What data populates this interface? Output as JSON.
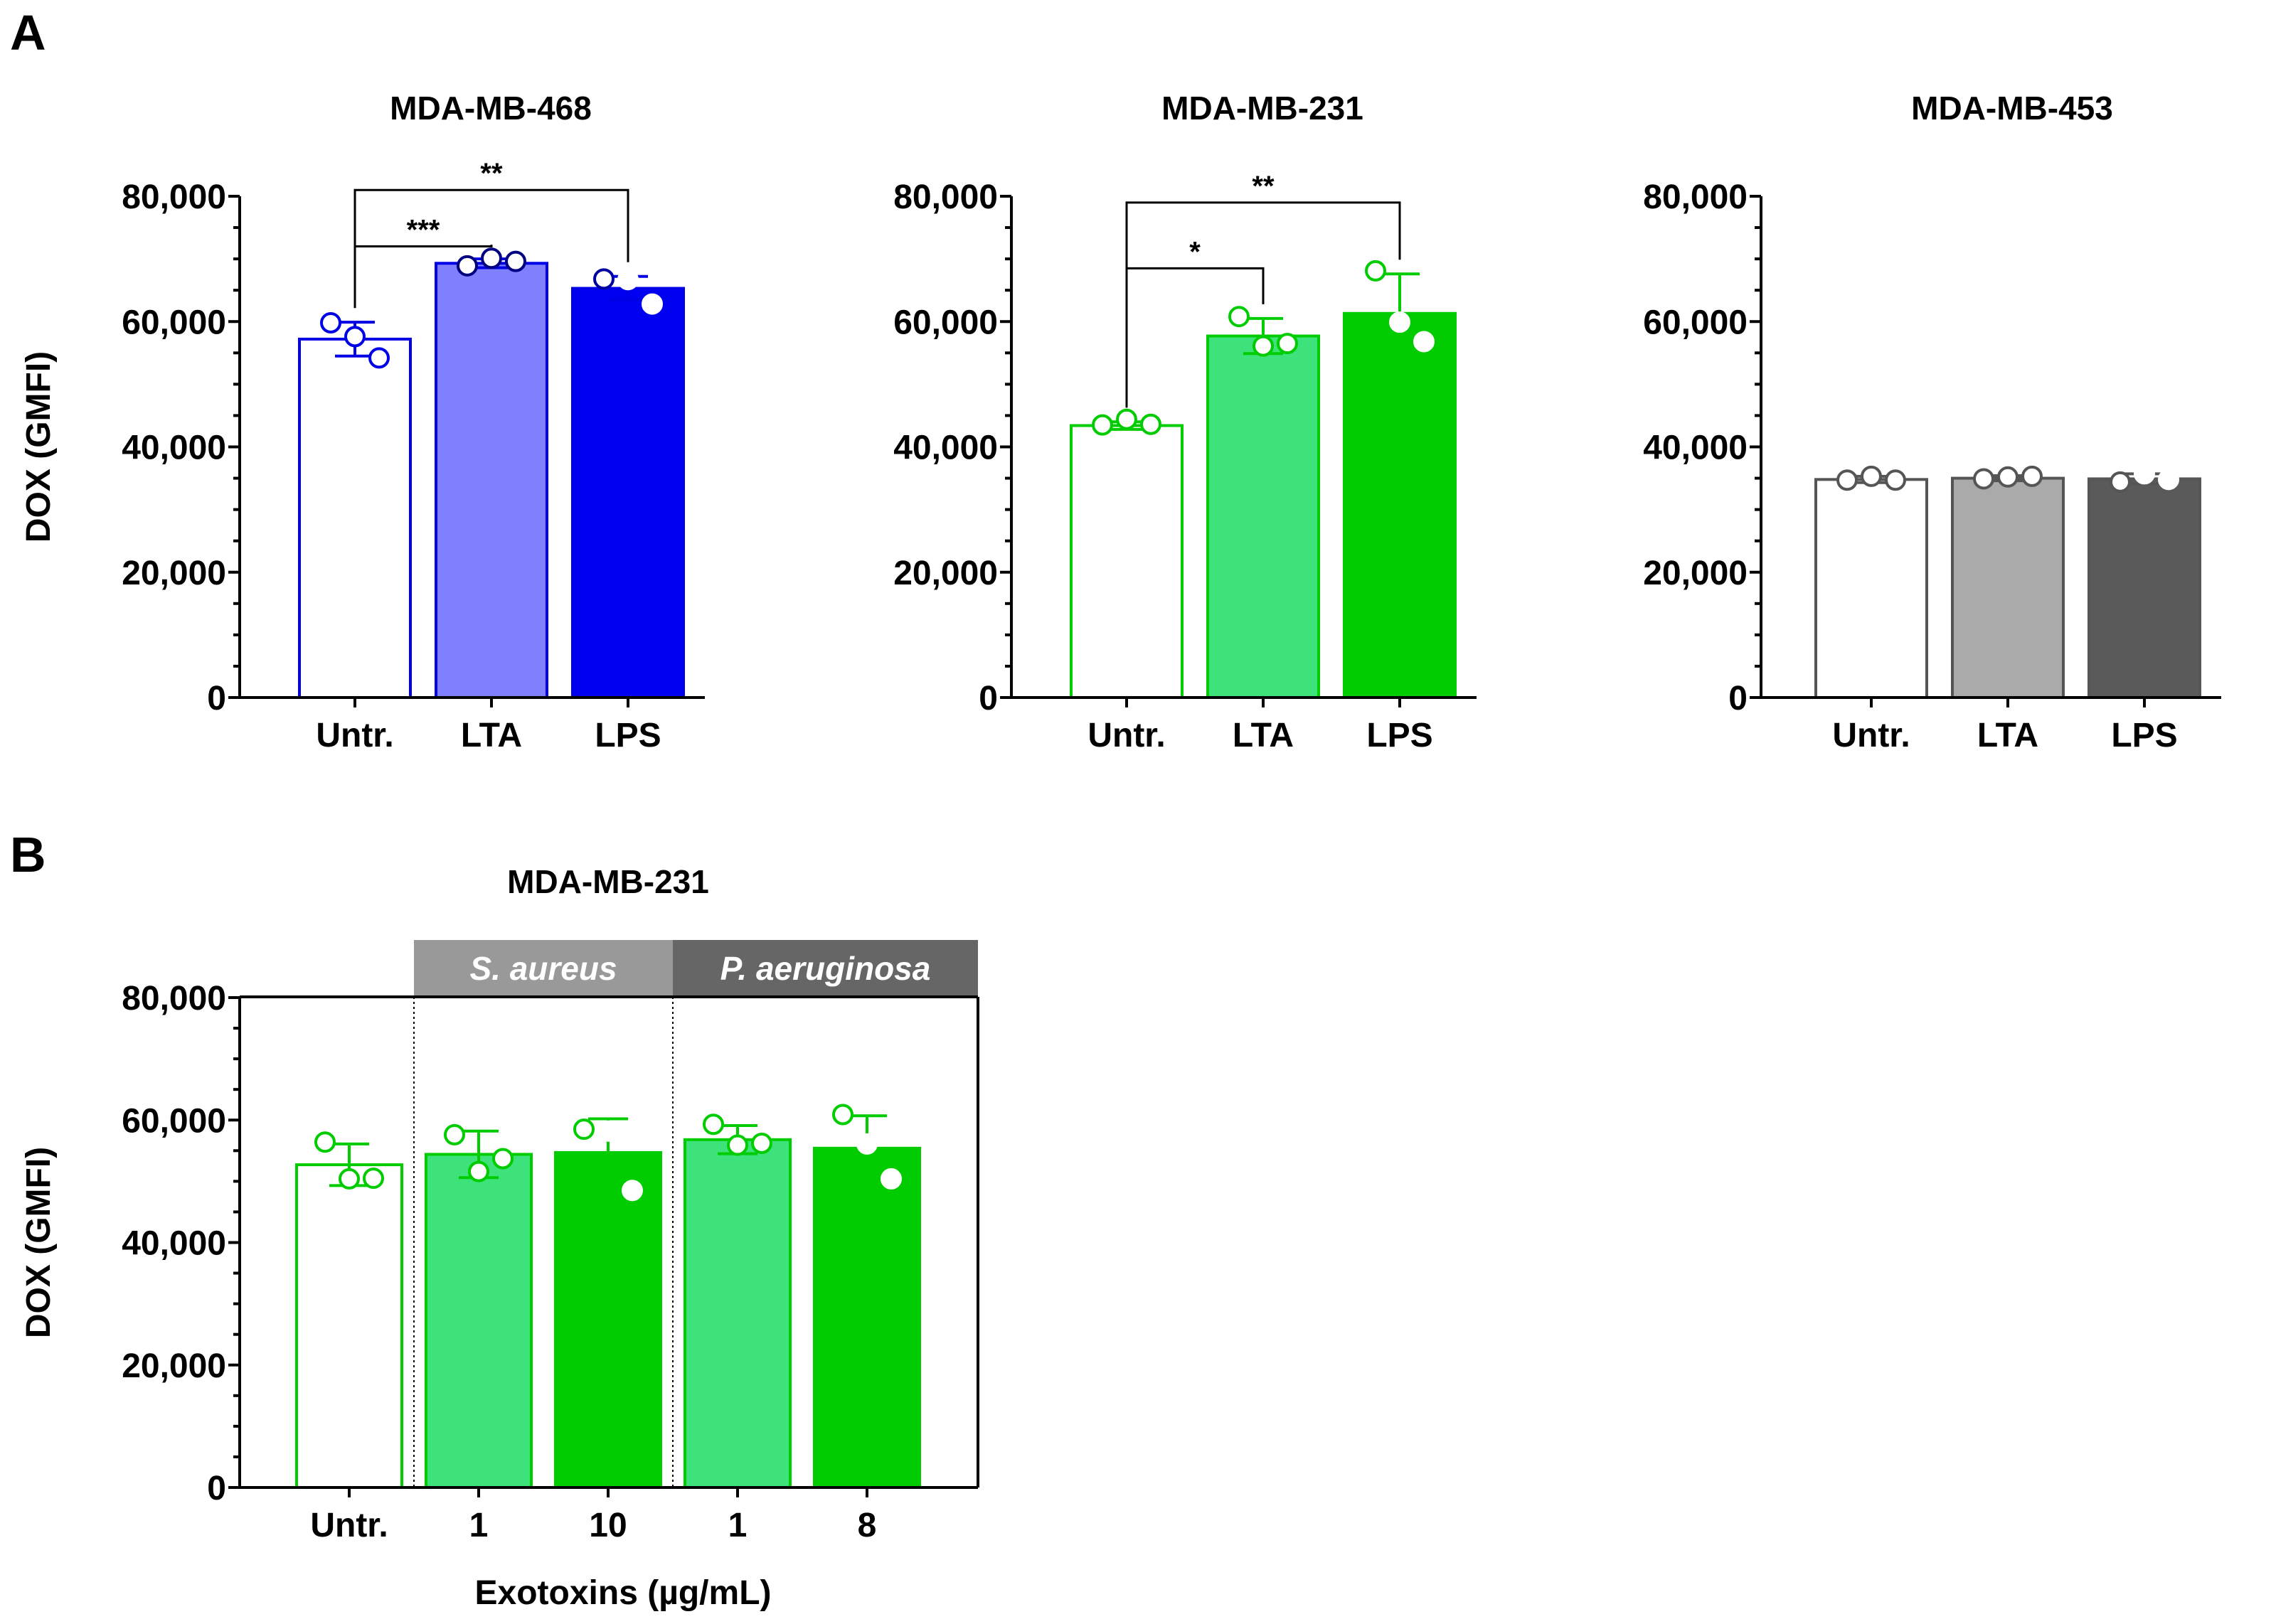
{
  "panels": {
    "A": "A",
    "B": "B"
  },
  "colors": {
    "blue_edge": "#0000e6",
    "blue_lta": "#8080ff",
    "blue_lps": "#0000f0",
    "green_edge": "#00cc00",
    "green_lta": "#3de37a",
    "green_lps": "#00cc00",
    "gray_edge": "#555555",
    "gray_lta": "#aaaaaa",
    "gray_lps": "#5a5a5a",
    "hdr_saureus": "#999999",
    "hdr_paeruginosa": "#666666"
  },
  "chart_data": [
    {
      "type": "bar",
      "title": "MDA-MB-468",
      "ylabel": "DOX (GMFI)",
      "xlabel": "",
      "categories": [
        "Untr.",
        "LTA",
        "LPS"
      ],
      "values": [
        57200,
        69300,
        65300
      ],
      "errors": [
        2700,
        700,
        1900
      ],
      "points": [
        [
          59800,
          57600,
          54200
        ],
        [
          68900,
          70100,
          69600
        ],
        [
          66800,
          66700,
          62800
        ]
      ],
      "ylim": [
        0,
        80000
      ],
      "yticks": [
        0,
        20000,
        40000,
        60000,
        80000
      ],
      "ytick_labels": [
        "0",
        "20,000",
        "40,000",
        "60,000",
        "80,000"
      ],
      "significance": [
        {
          "from": 0,
          "to": 2,
          "label": "**",
          "level": 81000
        },
        {
          "from": 0,
          "to": 1,
          "label": "***",
          "level": 72000
        }
      ],
      "bar_fill": [
        "#ffffff",
        "#8080ff",
        "#0000f0"
      ],
      "bar_edge": "#0000e6",
      "point_style": [
        "open",
        "open",
        "mixed"
      ]
    },
    {
      "type": "bar",
      "title": "MDA-MB-231",
      "ylabel": "",
      "xlabel": "",
      "categories": [
        "Untr.",
        "LTA",
        "LPS"
      ],
      "values": [
        43400,
        57700,
        61300
      ],
      "errors": [
        600,
        2800,
        6300
      ],
      "points": [
        [
          43500,
          44400,
          43600
        ],
        [
          60800,
          56100,
          56500
        ],
        [
          68100,
          59900,
          56800
        ]
      ],
      "ylim": [
        0,
        80000
      ],
      "yticks": [
        0,
        20000,
        40000,
        60000,
        80000
      ],
      "ytick_labels": [
        "0",
        "20,000",
        "40,000",
        "60,000",
        "80,000"
      ],
      "significance": [
        {
          "from": 0,
          "to": 2,
          "label": "**",
          "level": 79000
        },
        {
          "from": 0,
          "to": 1,
          "label": "*",
          "level": 68500
        }
      ],
      "bar_fill": [
        "#ffffff",
        "#3de37a",
        "#00cc00"
      ],
      "bar_edge": "#00cc00",
      "point_style": [
        "open",
        "open",
        "mixed"
      ]
    },
    {
      "type": "bar",
      "title": "MDA-MB-453",
      "ylabel": "",
      "xlabel": "",
      "categories": [
        "Untr.",
        "LTA",
        "LPS"
      ],
      "values": [
        34800,
        35000,
        34900
      ],
      "errors": [
        500,
        400,
        800
      ],
      "points": [
        [
          34700,
          35300,
          34700
        ],
        [
          34900,
          35200,
          35300
        ],
        [
          34400,
          35700,
          34800
        ]
      ],
      "ylim": [
        0,
        80000
      ],
      "yticks": [
        0,
        20000,
        40000,
        60000,
        80000
      ],
      "ytick_labels": [
        "0",
        "20,000",
        "40,000",
        "60,000",
        "80,000"
      ],
      "significance": [],
      "bar_fill": [
        "#ffffff",
        "#aaaaaa",
        "#5a5a5a"
      ],
      "bar_edge": "#555555",
      "point_style": [
        "open",
        "open",
        "mixed"
      ]
    },
    {
      "type": "bar",
      "title": "MDA-MB-231",
      "ylabel": "DOX (GMFI)",
      "xlabel": "Exotoxins (µg/mL)",
      "categories": [
        "Untr.",
        "1",
        "10",
        "1",
        "8"
      ],
      "group_headers": [
        {
          "label": "S. aureus",
          "from": 1,
          "to": 2,
          "color": "#999999"
        },
        {
          "label": "P. aeruginosa",
          "from": 3,
          "to": 4,
          "color": "#666666"
        }
      ],
      "values": [
        52700,
        54400,
        54700,
        56800,
        55400
      ],
      "errors": [
        3400,
        3800,
        5500,
        2300,
        5300
      ],
      "points": [
        [
          56400,
          50400,
          50500
        ],
        [
          57600,
          51600,
          53700
        ],
        [
          58500,
          58200,
          48500
        ],
        [
          59300,
          55900,
          56200
        ],
        [
          60900,
          56100,
          50400
        ]
      ],
      "ylim": [
        0,
        80000
      ],
      "yticks": [
        0,
        20000,
        40000,
        60000,
        80000
      ],
      "ytick_labels": [
        "0",
        "20,000",
        "40,000",
        "60,000",
        "80,000"
      ],
      "significance": [],
      "bar_fill": [
        "#ffffff",
        "#3de37a",
        "#00cc00",
        "#3de37a",
        "#00cc00"
      ],
      "bar_edge": "#00cc00",
      "point_style": [
        "open",
        "open",
        "mixed",
        "open",
        "mixed"
      ]
    }
  ]
}
